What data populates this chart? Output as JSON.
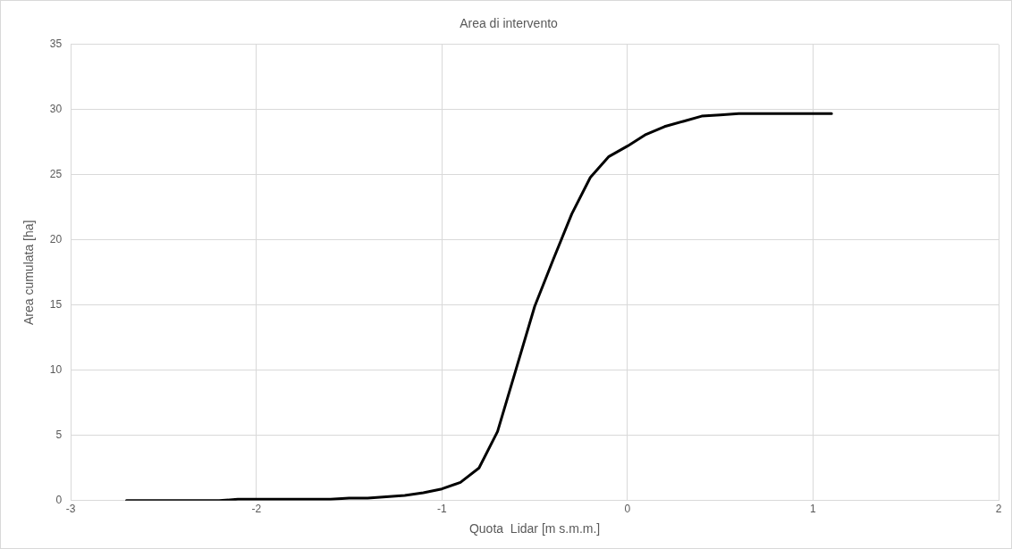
{
  "chart_data": {
    "type": "line",
    "title": "Area di intervento",
    "xlabel": "Quota  Lidar [m s.m.m.]",
    "ylabel": "Area cumulata [ha]",
    "x": [
      -2.7,
      -2.6,
      -2.5,
      -2.4,
      -2.3,
      -2.2,
      -2.1,
      -2.0,
      -1.9,
      -1.8,
      -1.7,
      -1.6,
      -1.5,
      -1.4,
      -1.3,
      -1.2,
      -1.1,
      -1.0,
      -0.9,
      -0.8,
      -0.7,
      -0.6,
      -0.5,
      -0.4,
      -0.3,
      -0.2,
      -0.1,
      0,
      0.1,
      0.2,
      0.3,
      0.4,
      0.5,
      0.6,
      0.7,
      0.8,
      0.9,
      1.0,
      1.1
    ],
    "series": [
      {
        "color": "#000000",
        "values": [
          0,
          0,
          0,
          0,
          0,
          0,
          0.1,
          0.1,
          0.1,
          0.1,
          0.1,
          0.1,
          0.2,
          0.2,
          0.3,
          0.4,
          0.6,
          0.9,
          1.4,
          2.5,
          5.3,
          10.1,
          14.9,
          18.5,
          22.0,
          24.8,
          26.4,
          27.2,
          28.1,
          28.7,
          29.1,
          29.5,
          29.6,
          29.7,
          29.7,
          29.7,
          29.7,
          29.7,
          29.7
        ]
      }
    ],
    "xlim": [
      -3,
      2
    ],
    "xticks": [
      -3,
      -2,
      -1,
      0,
      1,
      2
    ],
    "ylim": [
      0,
      35
    ],
    "yticks": [
      0,
      5,
      10,
      15,
      20,
      25,
      30,
      35
    ],
    "grid": true,
    "legend": false,
    "marker": "none",
    "line_style": "solid"
  }
}
